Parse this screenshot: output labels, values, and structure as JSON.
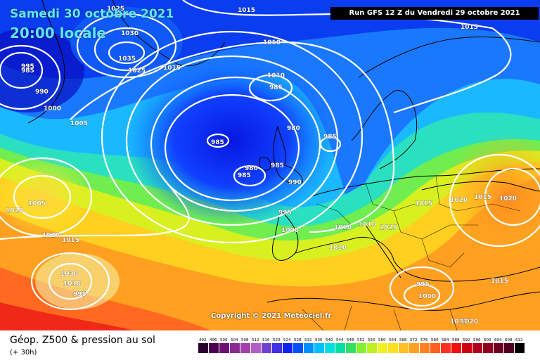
{
  "header": {
    "date": "Samedi 30 octobre 2021",
    "local_time": "20:00 locale",
    "run_info": "Run GFS 12 Z du Vendredi 29 octobre 2021"
  },
  "copyright": "Copyright © 2021 Meteociel.fr",
  "footer": {
    "product_title": "Géop. Z500 & pression au sol",
    "forecast_step": "(+ 30h)"
  },
  "isobar_labels": [
    "1015",
    "1025",
    "1030",
    "1035",
    "1025",
    "1015",
    "1010",
    "1015",
    "995",
    "985",
    "990",
    "1000",
    "1005",
    "1010",
    "985",
    "980",
    "985",
    "985",
    "985",
    "980",
    "985",
    "990",
    "995",
    "1000",
    "1005",
    "1020",
    "1020",
    "1015",
    "1010",
    "1010",
    "1010",
    "1015",
    "1020",
    "1015",
    "1020",
    "1025",
    "1030",
    "1010",
    "995",
    "995",
    "1000",
    "1015",
    "1011",
    "1020"
  ],
  "scale": {
    "labels": [
      "492",
      "496",
      "500",
      "504",
      "508",
      "512",
      "516",
      "520",
      "524",
      "528",
      "532",
      "536",
      "540",
      "544",
      "548",
      "552",
      "556",
      "560",
      "564",
      "568",
      "572",
      "576",
      "580",
      "584",
      "588",
      "592",
      "596",
      "600",
      "604",
      "608",
      "612"
    ],
    "colors": [
      "#2a0030",
      "#4a0050",
      "#6b1070",
      "#8a2a90",
      "#a040a8",
      "#b060c0",
      "#7040d0",
      "#4030e0",
      "#1020f0",
      "#0050ff",
      "#0090ff",
      "#00c0ff",
      "#00e0e0",
      "#00e0a0",
      "#30e060",
      "#80f030",
      "#c0f020",
      "#f0f020",
      "#ffe020",
      "#ffc020",
      "#ffa020",
      "#ff8020",
      "#ff6020",
      "#ff3020",
      "#f01010",
      "#d00010",
      "#b00020",
      "#900020",
      "#700020",
      "#500020",
      "#000000"
    ]
  }
}
